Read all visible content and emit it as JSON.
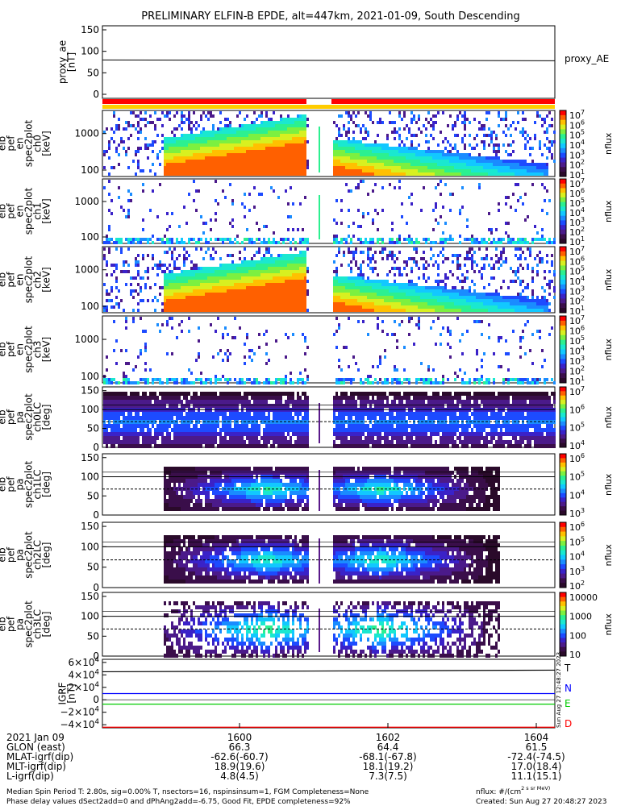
{
  "title": "PRELIMINARY ELFIN-B EPDE, alt=447km, 2021-01-09, South Descending",
  "panels": [
    {
      "id": "proxy",
      "ylabel": [
        "proxy_ae",
        "[nT]"
      ],
      "yticks": [
        "150",
        "100",
        "50",
        "0"
      ],
      "right_label": "proxy_AE"
    },
    {
      "id": "en0",
      "ylabel": [
        "elb",
        "pef",
        "en",
        "spec2plot",
        "ch0",
        "[keV]"
      ],
      "yticks": [
        "1000",
        "100"
      ],
      "cbar": [
        "10^7",
        "10^6",
        "10^5",
        "10^4",
        "10^3",
        "10^2",
        "10^1"
      ],
      "cbar_unit": "nflux"
    },
    {
      "id": "en1",
      "ylabel": [
        "elb",
        "pef",
        "en",
        "spec2plot",
        "ch1",
        "[keV]"
      ],
      "yticks": [
        "1000",
        "100"
      ],
      "cbar": [
        "10^7",
        "10^6",
        "10^5",
        "10^4",
        "10^3",
        "10^2",
        "10^1"
      ],
      "cbar_unit": "nflux"
    },
    {
      "id": "en2",
      "ylabel": [
        "elb",
        "pef",
        "en",
        "spec2plot",
        "ch2",
        "[keV]"
      ],
      "yticks": [
        "1000",
        "100"
      ],
      "cbar": [
        "10^7",
        "10^6",
        "10^5",
        "10^4",
        "10^3",
        "10^2",
        "10^1"
      ],
      "cbar_unit": "nflux"
    },
    {
      "id": "en3",
      "ylabel": [
        "elb",
        "pef",
        "en",
        "spec2plot",
        "ch3",
        "[keV]"
      ],
      "yticks": [
        "1000",
        "100"
      ],
      "cbar": [
        "10^7",
        "10^6",
        "10^5",
        "10^4",
        "10^3",
        "10^2",
        "10^1"
      ],
      "cbar_unit": "nflux"
    },
    {
      "id": "pa0",
      "ylabel": [
        "elb",
        "pef",
        "pa",
        "spec2plot",
        "ch0LC",
        "[deg]"
      ],
      "yticks": [
        "150",
        "100",
        "50",
        "0"
      ],
      "cbar": [
        "10^7",
        "10^6",
        "10^5",
        "10^4"
      ],
      "cbar_unit": "nflux"
    },
    {
      "id": "pa1",
      "ylabel": [
        "elb",
        "pef",
        "pa",
        "spec2plot",
        "ch1LC",
        "[deg]"
      ],
      "yticks": [
        "150",
        "100",
        "50",
        "0"
      ],
      "cbar": [
        "10^6",
        "10^5",
        "10^4",
        "10^3"
      ],
      "cbar_unit": "nflux"
    },
    {
      "id": "pa2",
      "ylabel": [
        "elb",
        "pef",
        "pa",
        "spec2plot",
        "ch2LC",
        "[deg]"
      ],
      "yticks": [
        "150",
        "100",
        "50",
        "0"
      ],
      "cbar": [
        "10^6",
        "10^5",
        "10^4",
        "10^3",
        "10^2"
      ],
      "cbar_unit": "nflux"
    },
    {
      "id": "pa3",
      "ylabel": [
        "elb",
        "pef",
        "pa",
        "spec2plot",
        "ch3LC",
        "[deg]"
      ],
      "yticks": [
        "150",
        "100",
        "50",
        "0"
      ],
      "cbar": [
        "10000",
        "1000",
        "100",
        "10"
      ],
      "cbar_unit": "nflux"
    },
    {
      "id": "igrf",
      "ylabel": [
        "IGRF",
        "[nT]"
      ],
      "yticks": [
        "6×10^4",
        "4×10^4",
        "2×10^4",
        "0",
        "−2×10^4",
        "−4×10^4"
      ],
      "right_labels": [
        "T",
        "N",
        "E",
        "D"
      ]
    }
  ],
  "colors": {
    "T": "#000000",
    "N": "#0000ff",
    "E": "#00cc00",
    "D": "#ff0000"
  },
  "footer_rows": [
    [
      "2021 Jan 09",
      "1600",
      "1602",
      "1604"
    ],
    [
      "GLON (east)",
      "66.3",
      "64.4",
      "61.5"
    ],
    [
      "MLAT-igrf(dip)",
      "-62.6(-60.7)",
      "-68.1(-67.8)",
      "-72.4(-74.5)"
    ],
    [
      "MLT-igrf(dip)",
      "18.9(19.6)",
      "18.1(19.2)",
      "17.0(18.4)"
    ],
    [
      "L-igrf(dip)",
      "4.8(4.5)",
      "7.3(7.5)",
      "11.1(15.1)"
    ]
  ],
  "notes": {
    "line1_left": "Median Spin Period T: 2.80s, sig=0.00% T, nsectors=16, nspinsinsum=1, FGM Completeness=None",
    "line2_left": "Phase delay values dSect2add=0 and dPhAng2add=-6.75, Good Fit, EPDE completeness=92%",
    "line1_right": "nflux: #/(cm^2 s sr MeV)",
    "line2_right": "Created: Sun Aug 27 20:48:27 2023",
    "side_stamp": "Sun Aug 27 12:48:27 2023"
  },
  "chart_data": {
    "type": "heatmap",
    "proxy_ae": {
      "ylim": [
        0,
        150
      ],
      "x": [
        "15:58",
        "16:05"
      ],
      "y": [
        80,
        78
      ]
    },
    "energy_ylim_keV": [
      70,
      7000
    ],
    "pitch_angle_ylim_deg": [
      0,
      160
    ],
    "data_gap_x": [
      "16:00:55",
      "16:01:20"
    ],
    "igrf": {
      "ylim": [
        -45000,
        65000
      ],
      "T": 45000,
      "N": 10000,
      "E": -7000,
      "D": -44000
    },
    "colorbar_unit": "nflux"
  }
}
